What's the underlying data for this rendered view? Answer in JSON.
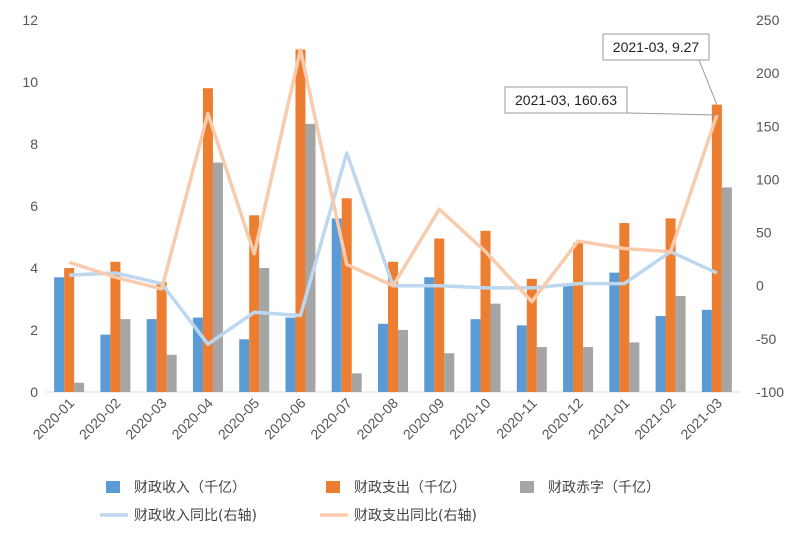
{
  "chart_data": {
    "type": "bar",
    "categories": [
      "2020-01",
      "2020-02",
      "2020-03",
      "2020-04",
      "2020-05",
      "2020-06",
      "2020-07",
      "2020-08",
      "2020-09",
      "2020-10",
      "2020-11",
      "2020-12",
      "2021-01",
      "2021-02",
      "2021-03"
    ],
    "left_axis": {
      "min": 0,
      "max": 12,
      "ticks": [
        "0",
        "2",
        "4",
        "6",
        "8",
        "10",
        "12"
      ]
    },
    "right_axis": {
      "min": -100,
      "max": 250,
      "ticks": [
        "-100",
        "-50",
        "0",
        "50",
        "100",
        "150",
        "200",
        "250"
      ]
    },
    "series": [
      {
        "name": "财政收入（千亿）",
        "kind": "bar",
        "axis": "left",
        "color": "#5b9bd5",
        "values": [
          3.7,
          1.85,
          2.35,
          2.4,
          1.7,
          2.4,
          5.6,
          2.2,
          3.7,
          2.35,
          2.15,
          3.5,
          3.85,
          2.45,
          2.65
        ]
      },
      {
        "name": "财政支出（千亿）",
        "kind": "bar",
        "axis": "left",
        "color": "#ed7d31",
        "values": [
          4.0,
          4.2,
          3.55,
          9.8,
          5.7,
          11.05,
          6.25,
          4.2,
          4.95,
          5.2,
          3.65,
          4.8,
          5.45,
          5.6,
          9.27
        ]
      },
      {
        "name": "财政赤字（千亿）",
        "kind": "bar",
        "axis": "left",
        "color": "#a5a5a5",
        "values": [
          0.3,
          2.35,
          1.2,
          7.4,
          4.0,
          8.65,
          0.6,
          2.0,
          1.25,
          2.85,
          1.45,
          1.45,
          1.6,
          3.1,
          6.6
        ]
      },
      {
        "name": "财政收入同比(右轴)",
        "kind": "line",
        "axis": "right",
        "color": "#bdd7ee",
        "values": [
          10,
          12,
          2,
          -55,
          -25,
          -28,
          125,
          0,
          0,
          -2,
          -2,
          2,
          2,
          32,
          12
        ]
      },
      {
        "name": "财政支出同比(右轴)",
        "kind": "line",
        "axis": "right",
        "color": "#f8cbad",
        "values": [
          22,
          8,
          -3,
          162,
          30,
          222,
          20,
          0,
          72,
          32,
          -15,
          42,
          35,
          32,
          160.63
        ]
      }
    ],
    "annotations": [
      {
        "text": "2021-03, 9.27",
        "category": "2021-03",
        "series": "财政支出（千亿）",
        "value": 9.27
      },
      {
        "text": "2021-03, 160.63",
        "category": "2021-03",
        "series": "财政支出同比(右轴)",
        "value": 160.63
      }
    ],
    "legend": "bottom"
  }
}
